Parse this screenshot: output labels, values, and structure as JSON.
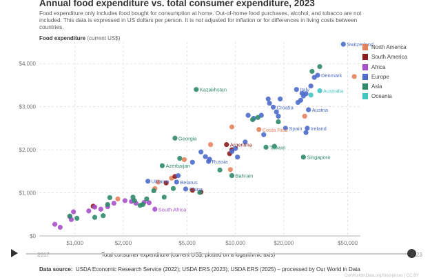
{
  "header": {
    "title": "Annual food expenditure vs. total consumer expenditure, 2023",
    "subtitle": "Food expenditure only includes food bought for consumption at home. Out-of-home food purchases, alcohol, and tobacco are not included. This data is expressed in US dollars per person. It is not adjusted for inflation or for differences in living costs between countries."
  },
  "timeline": {
    "start_year": "2017",
    "end_year": "2023"
  },
  "footer": {
    "source_label": "Data source:",
    "source_text": "USDA Economic Research Service (2022); USDA ERS (2023); USDA ERS (2025) – processed by Our World in Data",
    "license": "OurWorldInData.org/food-prices | CC BY"
  },
  "colors": {
    "North America": "#e4825e",
    "South America": "#8c1c1c",
    "Africa": "#a752c9",
    "Europe": "#4c6bcb",
    "Asia": "#2f8a6c",
    "Oceania": "#45c4c4"
  },
  "chart_data": {
    "type": "scatter",
    "title": "Annual food expenditure vs. total consumer expenditure, 2023",
    "ylabel": "Food expenditure",
    "ylabel_unit": "(current US$)",
    "xlabel": "Total consumer expenditure (current US$, plotted on a logarithmic axis)",
    "x_scale": "log",
    "xlim": [
      600,
      60000
    ],
    "ylim": [
      0,
      4500
    ],
    "x_ticks": [
      1000,
      2000,
      5000,
      10000,
      20000,
      50000
    ],
    "x_tick_labels": [
      "$1,000",
      "$2,000",
      "$5,000",
      "$10,000",
      "$20,000",
      "$50,000"
    ],
    "y_ticks": [
      0,
      1000,
      2000,
      3000,
      4000
    ],
    "y_tick_labels": [
      "$0",
      "$1,000",
      "$2,000",
      "$3,000",
      "$4,000"
    ],
    "grid": true,
    "legend_position": "right",
    "legend": [
      "North America",
      "South America",
      "Africa",
      "Europe",
      "Asia",
      "Oceania"
    ],
    "series": [
      {
        "name": "North America",
        "points": [
          {
            "x": 55000,
            "y": 3700
          },
          {
            "x": 27000,
            "y": 2780
          },
          {
            "x": 14000,
            "y": 2470,
            "label": "Costa Rica"
          },
          {
            "x": 7000,
            "y": 2120
          },
          {
            "x": 9500,
            "y": 2530
          },
          {
            "x": 9300,
            "y": 1540
          },
          {
            "x": 4800,
            "y": 1770
          },
          {
            "x": 3300,
            "y": 1250
          },
          {
            "x": 4000,
            "y": 1340
          },
          {
            "x": 3150,
            "y": 1100
          },
          {
            "x": 1850,
            "y": 860
          }
        ]
      },
      {
        "name": "South America",
        "points": [
          {
            "x": 8800,
            "y": 2120,
            "label": "Argentina"
          },
          {
            "x": 9500,
            "y": 2000
          },
          {
            "x": 4200,
            "y": 1380
          },
          {
            "x": 5400,
            "y": 1060
          },
          {
            "x": 6100,
            "y": 1020
          },
          {
            "x": 3700,
            "y": 1230
          },
          {
            "x": 1300,
            "y": 690
          },
          {
            "x": 9200,
            "y": 1910
          }
        ]
      },
      {
        "name": "Africa",
        "points": [
          {
            "x": 750,
            "y": 270
          },
          {
            "x": 810,
            "y": 200
          },
          {
            "x": 930,
            "y": 450
          },
          {
            "x": 950,
            "y": 380
          },
          {
            "x": 980,
            "y": 560
          },
          {
            "x": 1220,
            "y": 580
          },
          {
            "x": 1330,
            "y": 670
          },
          {
            "x": 1450,
            "y": 620
          },
          {
            "x": 1600,
            "y": 680
          },
          {
            "x": 1750,
            "y": 760
          },
          {
            "x": 2050,
            "y": 820
          },
          {
            "x": 2400,
            "y": 760
          },
          {
            "x": 2700,
            "y": 780
          },
          {
            "x": 3150,
            "y": 620,
            "label": "South Africa"
          },
          {
            "x": 2900,
            "y": 770
          },
          {
            "x": 2250,
            "y": 800
          }
        ]
      },
      {
        "name": "Europe",
        "points": [
          {
            "x": 47000,
            "y": 4450,
            "label": "Switzerland"
          },
          {
            "x": 32500,
            "y": 3730,
            "label": "Denmark"
          },
          {
            "x": 31000,
            "y": 3680
          },
          {
            "x": 29500,
            "y": 3480
          },
          {
            "x": 24000,
            "y": 3400,
            "label": "Italy"
          },
          {
            "x": 26000,
            "y": 3310
          },
          {
            "x": 26500,
            "y": 3250
          },
          {
            "x": 27500,
            "y": 3300
          },
          {
            "x": 28500,
            "y": 2930,
            "label": "Austria"
          },
          {
            "x": 25500,
            "y": 3150
          },
          {
            "x": 24500,
            "y": 3100
          },
          {
            "x": 16000,
            "y": 3180
          },
          {
            "x": 16300,
            "y": 3080
          },
          {
            "x": 19000,
            "y": 3180
          },
          {
            "x": 17200,
            "y": 2990,
            "label": "Croatia"
          },
          {
            "x": 18500,
            "y": 2780
          },
          {
            "x": 18000,
            "y": 2880
          },
          {
            "x": 14500,
            "y": 2800
          },
          {
            "x": 12000,
            "y": 2800
          },
          {
            "x": 13000,
            "y": 2730
          },
          {
            "x": 20500,
            "y": 2500,
            "label": "Spain"
          },
          {
            "x": 28000,
            "y": 2500,
            "label": "Ireland"
          },
          {
            "x": 27500,
            "y": 2400
          },
          {
            "x": 15000,
            "y": 2350
          },
          {
            "x": 11500,
            "y": 2180
          },
          {
            "x": 10000,
            "y": 2030
          },
          {
            "x": 10300,
            "y": 1830
          },
          {
            "x": 9500,
            "y": 1960
          },
          {
            "x": 6900,
            "y": 1780
          },
          {
            "x": 6500,
            "y": 1840
          },
          {
            "x": 6800,
            "y": 1730,
            "label": "Russia"
          },
          {
            "x": 5400,
            "y": 1710
          },
          {
            "x": 6100,
            "y": 1950
          },
          {
            "x": 4300,
            "y": 1250,
            "label": "Belarus"
          },
          {
            "x": 4400,
            "y": 1400
          },
          {
            "x": 2850,
            "y": 1270,
            "label": "Ukraine"
          },
          {
            "x": 4900,
            "y": 1090,
            "label": "China"
          }
        ]
      },
      {
        "name": "Asia",
        "points": [
          {
            "x": 33500,
            "y": 3930
          },
          {
            "x": 30000,
            "y": 3820
          },
          {
            "x": 5700,
            "y": 3400,
            "label": "Kazakhstan"
          },
          {
            "x": 12800,
            "y": 2700
          },
          {
            "x": 18500,
            "y": 2650
          },
          {
            "x": 13800,
            "y": 2750
          },
          {
            "x": 4200,
            "y": 2270,
            "label": "Georgia"
          },
          {
            "x": 15500,
            "y": 2060,
            "label": "Taiwan"
          },
          {
            "x": 17500,
            "y": 2080
          },
          {
            "x": 26500,
            "y": 1830,
            "label": "Singapore"
          },
          {
            "x": 9500,
            "y": 1400,
            "label": "Bahrain"
          },
          {
            "x": 8000,
            "y": 1530
          },
          {
            "x": 3500,
            "y": 1630,
            "label": "Azerbaijan"
          },
          {
            "x": 4500,
            "y": 1800
          },
          {
            "x": 1600,
            "y": 730
          },
          {
            "x": 1500,
            "y": 470
          },
          {
            "x": 1330,
            "y": 430
          },
          {
            "x": 1030,
            "y": 410
          },
          {
            "x": 930,
            "y": 460
          },
          {
            "x": 2300,
            "y": 900
          },
          {
            "x": 2550,
            "y": 710
          },
          {
            "x": 2650,
            "y": 730
          },
          {
            "x": 2350,
            "y": 820
          },
          {
            "x": 2800,
            "y": 860
          },
          {
            "x": 4100,
            "y": 1100
          },
          {
            "x": 3100,
            "y": 1050
          },
          {
            "x": 3600,
            "y": 900
          },
          {
            "x": 6000,
            "y": 1010
          },
          {
            "x": 1650,
            "y": 890
          }
        ]
      },
      {
        "name": "Oceania",
        "points": [
          {
            "x": 33500,
            "y": 3370,
            "label": "Australia"
          },
          {
            "x": 29500,
            "y": 3270
          }
        ]
      }
    ]
  }
}
